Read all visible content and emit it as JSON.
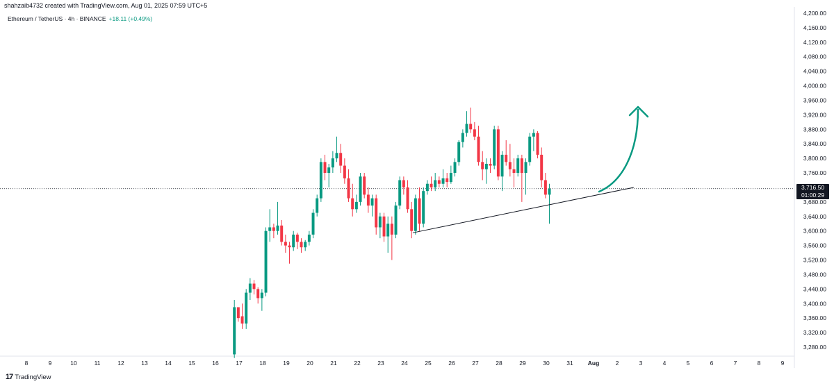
{
  "header": {
    "caption": "shahzaib4732 created with TradingView.com, Aug 01, 2025 07:59 UTC+5",
    "symbol": "Ethereum / TetherUS · 4h · BINANCE",
    "change": "+18.11 (+0.49%)"
  },
  "footer": {
    "brand": "TradingView",
    "logo": "17"
  },
  "price_tag": {
    "price": "3,716.50",
    "countdown": "01:00:29"
  },
  "colors": {
    "up": "#089981",
    "down": "#f23645",
    "arrow": "#089981",
    "trendline": "#131722",
    "grid": "#e0e3eb"
  },
  "chart_data": {
    "type": "candlestick",
    "y_ticks": [
      3280,
      3320,
      3360,
      3400,
      3440,
      3480,
      3520,
      3560,
      3600,
      3640,
      3680,
      3720,
      3760,
      3800,
      3840,
      3880,
      3920,
      3960,
      4000,
      4040,
      4080,
      4120,
      4160,
      4200
    ],
    "y_tick_labels": [
      "3,280.00",
      "3,320.00",
      "3,360.00",
      "3,400.00",
      "3,440.00",
      "3,480.00",
      "3,520.00",
      "3,560.00",
      "3,600.00",
      "3,640.00",
      "3,680.00",
      "3,720.00",
      "3,760.00",
      "3,800.00",
      "3,840.00",
      "3,880.00",
      "3,920.00",
      "3,960.00",
      "4,000.00",
      "4,040.00",
      "4,080.00",
      "4,120.00",
      "4,160.00",
      "4,200.00"
    ],
    "x_labels": [
      "8",
      "9",
      "10",
      "11",
      "12",
      "13",
      "14",
      "15",
      "16",
      "17",
      "18",
      "19",
      "20",
      "21",
      "22",
      "23",
      "24",
      "25",
      "26",
      "27",
      "28",
      "29",
      "30",
      "31",
      "Aug",
      "2",
      "3",
      "4",
      "5",
      "6",
      "7",
      "8",
      "9"
    ],
    "x_days": [
      8,
      9,
      10,
      11,
      12,
      13,
      14,
      15,
      16,
      17,
      18,
      19,
      20,
      21,
      22,
      23,
      24,
      25,
      26,
      27,
      28,
      29,
      30,
      31,
      32,
      33,
      34,
      35,
      36,
      37,
      38,
      39,
      40
    ],
    "current_price": 3716.5,
    "trendline": {
      "start": [
        24.35,
        3595
      ],
      "end": [
        33.7,
        3720
      ]
    },
    "candles_4h_ohlc": [
      [
        3260,
        3410,
        3250,
        3390
      ],
      [
        3390,
        3380,
        3350,
        3360
      ],
      [
        3365,
        3400,
        3330,
        3345
      ],
      [
        3345,
        3440,
        3330,
        3430
      ],
      [
        3430,
        3470,
        3410,
        3455
      ],
      [
        3455,
        3465,
        3425,
        3440
      ],
      [
        3440,
        3445,
        3400,
        3415
      ],
      [
        3415,
        3440,
        3380,
        3430
      ],
      [
        3430,
        3610,
        3420,
        3600
      ],
      [
        3600,
        3660,
        3570,
        3610
      ],
      [
        3610,
        3620,
        3580,
        3600
      ],
      [
        3600,
        3680,
        3590,
        3615
      ],
      [
        3615,
        3630,
        3560,
        3570
      ],
      [
        3570,
        3590,
        3540,
        3560
      ],
      [
        3560,
        3570,
        3510,
        3555
      ],
      [
        3555,
        3600,
        3545,
        3590
      ],
      [
        3590,
        3595,
        3550,
        3570
      ],
      [
        3570,
        3580,
        3540,
        3555
      ],
      [
        3555,
        3575,
        3545,
        3570
      ],
      [
        3570,
        3600,
        3560,
        3590
      ],
      [
        3590,
        3660,
        3580,
        3650
      ],
      [
        3650,
        3700,
        3640,
        3690
      ],
      [
        3690,
        3800,
        3680,
        3790
      ],
      [
        3790,
        3810,
        3740,
        3760
      ],
      [
        3760,
        3785,
        3720,
        3775
      ],
      [
        3775,
        3820,
        3760,
        3800
      ],
      [
        3800,
        3860,
        3790,
        3815
      ],
      [
        3815,
        3840,
        3760,
        3780
      ],
      [
        3780,
        3800,
        3730,
        3745
      ],
      [
        3745,
        3770,
        3680,
        3690
      ],
      [
        3690,
        3730,
        3640,
        3660
      ],
      [
        3660,
        3700,
        3650,
        3680
      ],
      [
        3680,
        3760,
        3670,
        3750
      ],
      [
        3750,
        3760,
        3690,
        3700
      ],
      [
        3700,
        3720,
        3650,
        3670
      ],
      [
        3670,
        3700,
        3640,
        3690
      ],
      [
        3690,
        3700,
        3590,
        3610
      ],
      [
        3610,
        3650,
        3580,
        3640
      ],
      [
        3640,
        3650,
        3570,
        3585
      ],
      [
        3585,
        3640,
        3540,
        3620
      ],
      [
        3620,
        3640,
        3520,
        3590
      ],
      [
        3590,
        3680,
        3580,
        3670
      ],
      [
        3670,
        3750,
        3660,
        3740
      ],
      [
        3740,
        3750,
        3700,
        3720
      ],
      [
        3720,
        3740,
        3650,
        3660
      ],
      [
        3660,
        3680,
        3580,
        3600
      ],
      [
        3600,
        3700,
        3590,
        3690
      ],
      [
        3690,
        3720,
        3600,
        3620
      ],
      [
        3620,
        3720,
        3610,
        3710
      ],
      [
        3710,
        3740,
        3700,
        3730
      ],
      [
        3730,
        3750,
        3710,
        3720
      ],
      [
        3720,
        3760,
        3710,
        3740
      ],
      [
        3740,
        3750,
        3720,
        3730
      ],
      [
        3730,
        3770,
        3720,
        3745
      ],
      [
        3745,
        3760,
        3720,
        3735
      ],
      [
        3735,
        3780,
        3730,
        3760
      ],
      [
        3760,
        3800,
        3750,
        3790
      ],
      [
        3790,
        3850,
        3780,
        3845
      ],
      [
        3845,
        3880,
        3830,
        3870
      ],
      [
        3870,
        3930,
        3860,
        3895
      ],
      [
        3895,
        3940,
        3870,
        3880
      ],
      [
        3880,
        3900,
        3850,
        3860
      ],
      [
        3860,
        3890,
        3780,
        3790
      ],
      [
        3790,
        3820,
        3740,
        3770
      ],
      [
        3770,
        3800,
        3730,
        3785
      ],
      [
        3785,
        3800,
        3760,
        3780
      ],
      [
        3780,
        3890,
        3770,
        3880
      ],
      [
        3880,
        3890,
        3740,
        3750
      ],
      [
        3750,
        3820,
        3710,
        3810
      ],
      [
        3810,
        3850,
        3780,
        3790
      ],
      [
        3790,
        3840,
        3750,
        3770
      ],
      [
        3770,
        3800,
        3720,
        3760
      ],
      [
        3760,
        3810,
        3750,
        3800
      ],
      [
        3800,
        3810,
        3680,
        3760
      ],
      [
        3760,
        3800,
        3700,
        3790
      ],
      [
        3790,
        3870,
        3780,
        3860
      ],
      [
        3860,
        3880,
        3820,
        3870
      ],
      [
        3870,
        3875,
        3800,
        3810
      ],
      [
        3810,
        3830,
        3720,
        3740
      ],
      [
        3740,
        3760,
        3690,
        3700
      ],
      [
        3700,
        3730,
        3620,
        3716.5
      ]
    ]
  }
}
